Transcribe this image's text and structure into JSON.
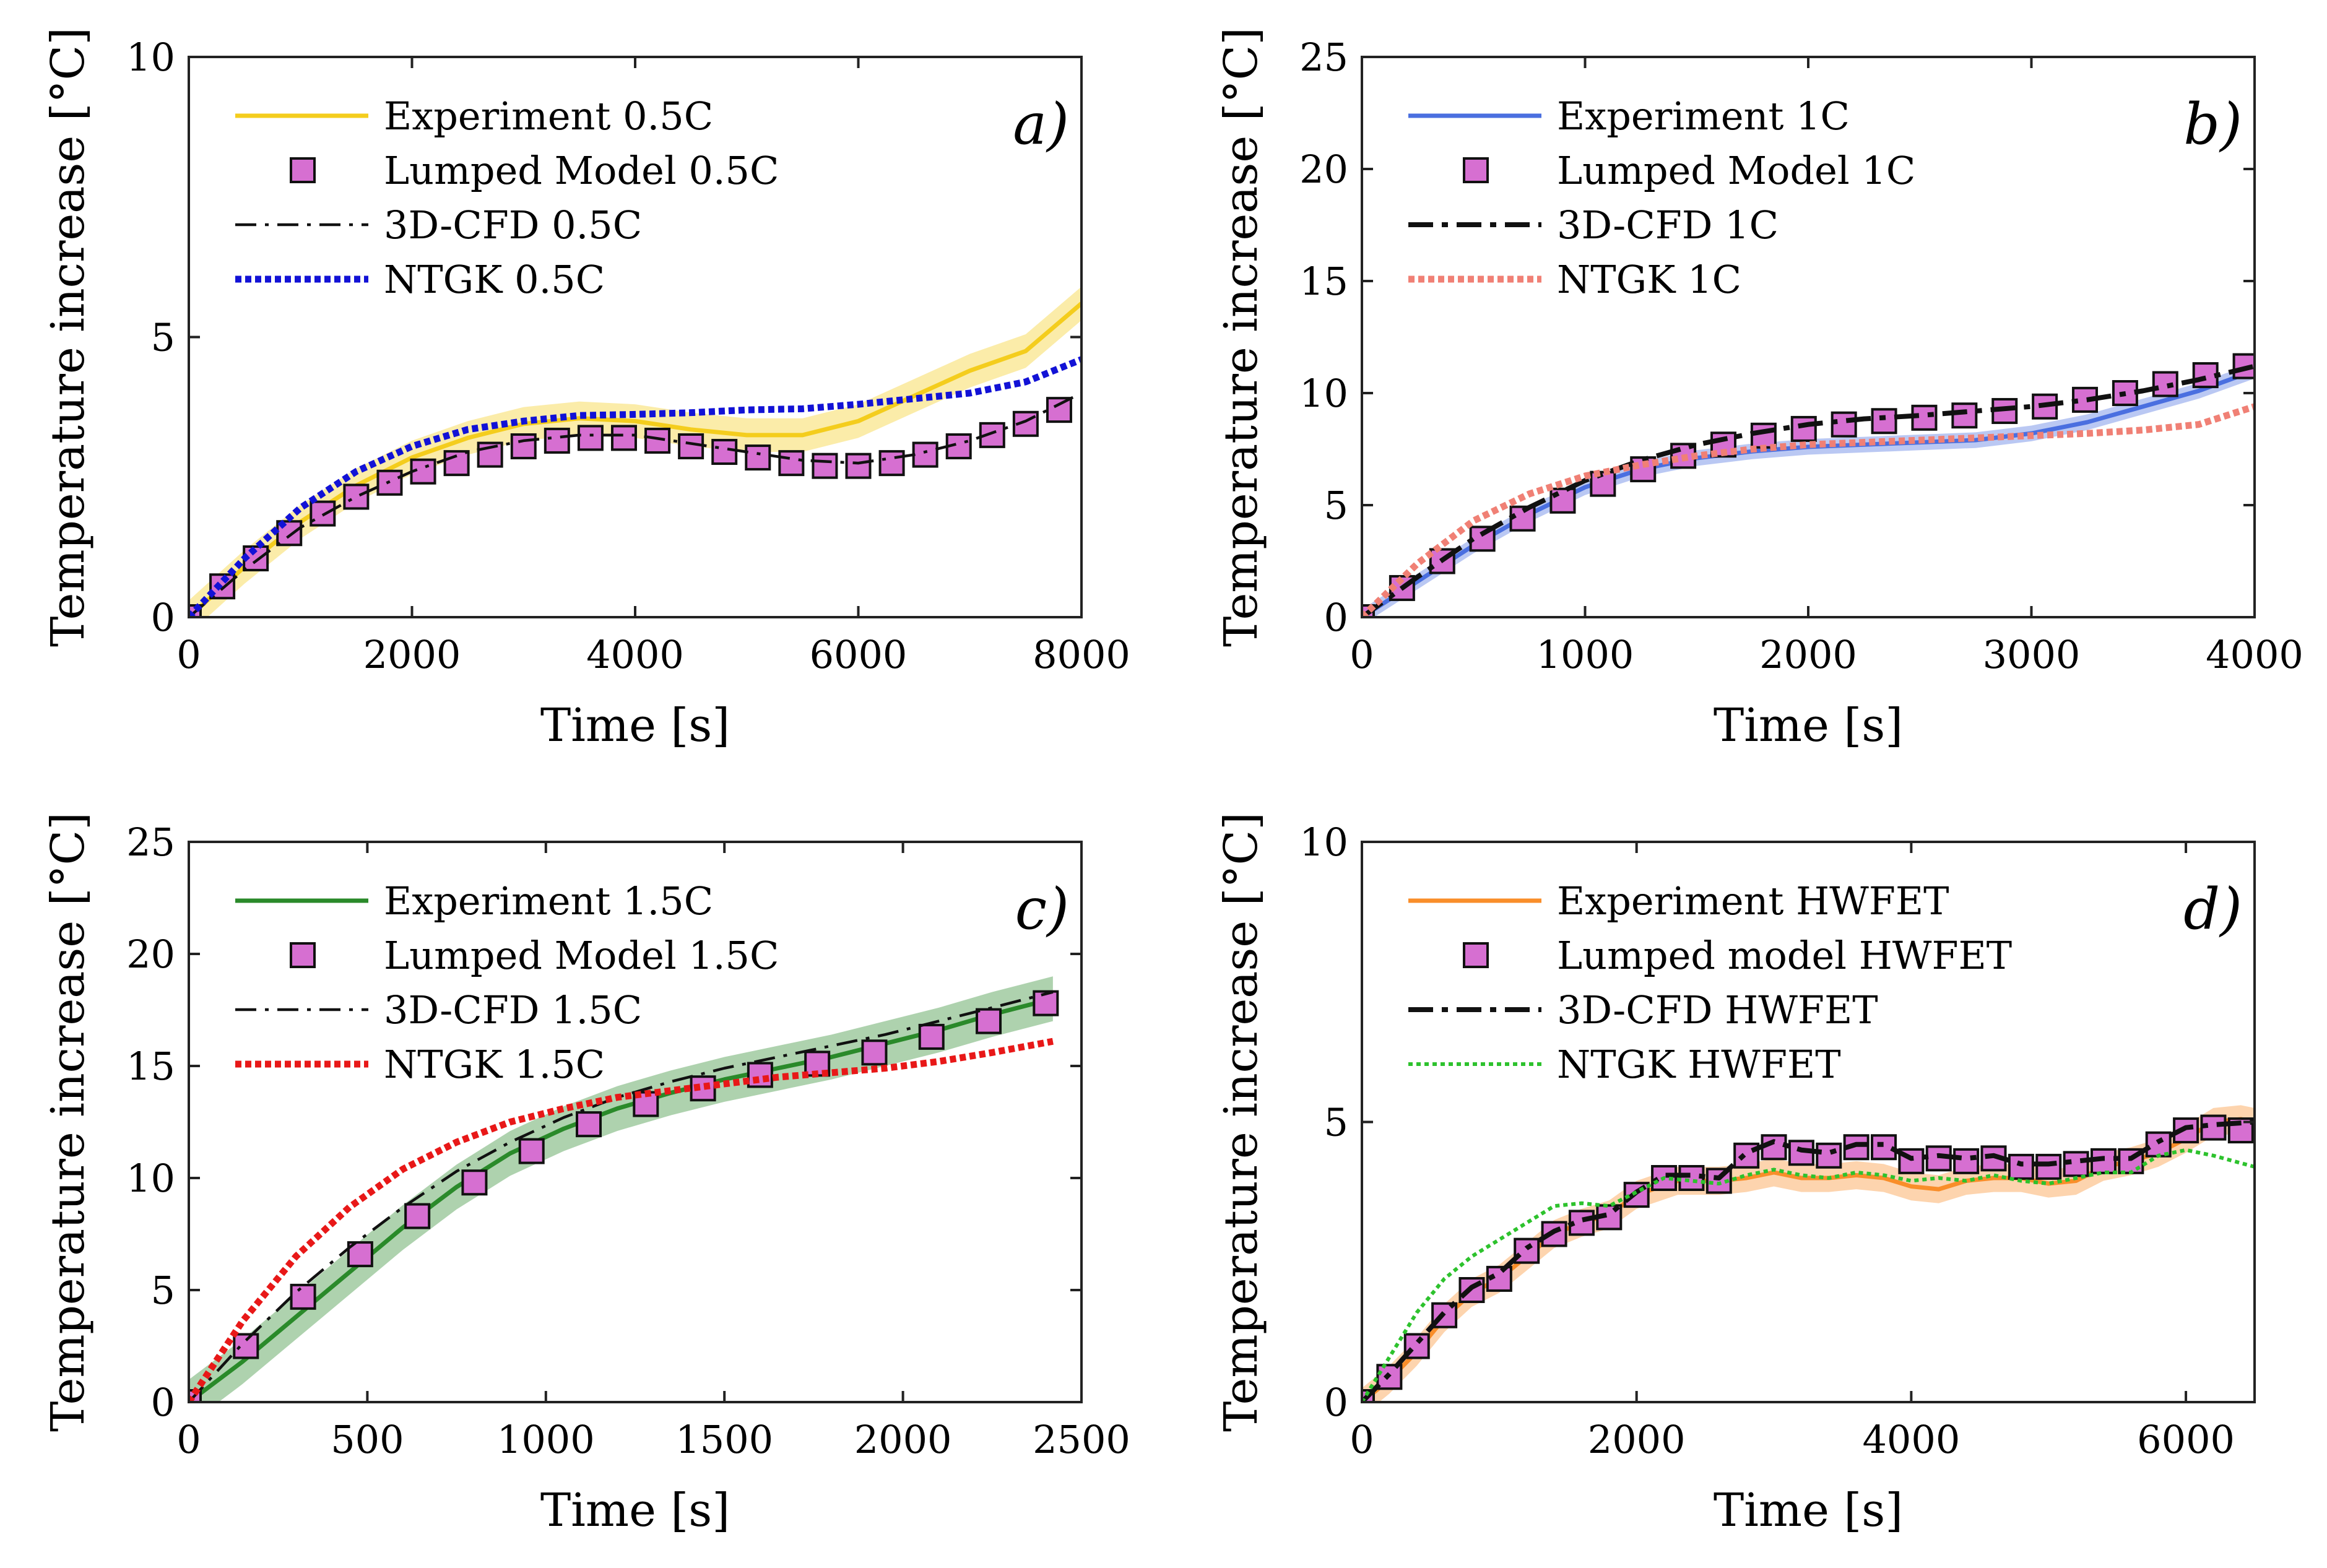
{
  "charts": [
    {
      "tag": "a)",
      "type": "line",
      "xlabel": "Time [s]",
      "ylabel": "Temperature increase [°C]",
      "xlim": [
        0,
        8000
      ],
      "ylim": [
        0,
        10
      ],
      "xticks": [
        0,
        2000,
        4000,
        6000,
        8000
      ],
      "yticks": [
        0,
        5,
        10
      ],
      "legend_position": "top-left",
      "series": [
        {
          "name": "Experiment 0.5C",
          "kind": "experiment",
          "color": "#f4cd1d",
          "band": 0.3,
          "x": [
            0,
            500,
            1000,
            1500,
            2000,
            2500,
            3000,
            3500,
            4000,
            4500,
            5000,
            5500,
            6000,
            6500,
            7000,
            7500,
            8000
          ],
          "y": [
            0,
            0.9,
            1.7,
            2.35,
            2.85,
            3.2,
            3.45,
            3.55,
            3.5,
            3.35,
            3.25,
            3.25,
            3.5,
            3.95,
            4.4,
            4.75,
            5.6
          ]
        },
        {
          "name": "Lumped Model 0.5C",
          "kind": "markers",
          "color": "#d66fd1",
          "x": [
            0,
            300,
            600,
            900,
            1200,
            1500,
            1800,
            2100,
            2400,
            2700,
            3000,
            3300,
            3600,
            3900,
            4200,
            4500,
            4800,
            5100,
            5400,
            5700,
            6000,
            6300,
            6600,
            6900,
            7200,
            7500,
            7800
          ],
          "y": [
            0,
            0.55,
            1.05,
            1.5,
            1.85,
            2.15,
            2.4,
            2.6,
            2.75,
            2.9,
            3.05,
            3.15,
            3.2,
            3.2,
            3.15,
            3.05,
            2.95,
            2.85,
            2.75,
            2.7,
            2.7,
            2.75,
            2.9,
            3.05,
            3.25,
            3.45,
            3.7
          ]
        },
        {
          "name": "3D-CFD 0.5C",
          "kind": "dashdot-thin",
          "color": "#111111",
          "x": [
            0,
            500,
            1000,
            1500,
            2000,
            2500,
            3000,
            3500,
            4000,
            4500,
            5000,
            5500,
            6000,
            6500,
            7000,
            7500,
            8000
          ],
          "y": [
            0,
            0.85,
            1.6,
            2.15,
            2.6,
            2.95,
            3.15,
            3.25,
            3.25,
            3.1,
            2.95,
            2.8,
            2.75,
            2.9,
            3.15,
            3.5,
            4.0
          ]
        },
        {
          "name": "NTGK 0.5C",
          "kind": "dotted",
          "color": "#1212d6",
          "x": [
            0,
            500,
            1000,
            1500,
            2000,
            2500,
            3000,
            3500,
            4000,
            4500,
            5000,
            5500,
            6000,
            6500,
            7000,
            7500,
            8000
          ],
          "y": [
            0,
            1.05,
            1.95,
            2.6,
            3.05,
            3.35,
            3.5,
            3.6,
            3.62,
            3.65,
            3.7,
            3.72,
            3.8,
            3.9,
            4.0,
            4.2,
            4.6
          ]
        }
      ]
    },
    {
      "tag": "b)",
      "type": "line",
      "xlabel": "Time [s]",
      "ylabel": "Temperature increase [°C]",
      "xlim": [
        0,
        4000
      ],
      "ylim": [
        0,
        25
      ],
      "xticks": [
        0,
        1000,
        2000,
        3000,
        4000
      ],
      "yticks": [
        0,
        5,
        10,
        15,
        20,
        25
      ],
      "legend_position": "top-left",
      "series": [
        {
          "name": "Experiment 1C",
          "kind": "experiment",
          "color": "#4a6fe0",
          "band": 0.35,
          "x": [
            0,
            250,
            500,
            750,
            1000,
            1250,
            1500,
            1750,
            2000,
            2250,
            2500,
            2750,
            3000,
            3250,
            3500,
            3750,
            4000
          ],
          "y": [
            0,
            1.6,
            3.2,
            4.6,
            5.8,
            6.6,
            7.1,
            7.4,
            7.6,
            7.7,
            7.8,
            7.9,
            8.2,
            8.7,
            9.4,
            10.1,
            11.0
          ]
        },
        {
          "name": "Lumped Model 1C",
          "kind": "markers",
          "color": "#d66fd1",
          "x": [
            0,
            180,
            360,
            540,
            720,
            900,
            1080,
            1260,
            1440,
            1620,
            1800,
            1980,
            2160,
            2340,
            2520,
            2700,
            2880,
            3060,
            3240,
            3420,
            3600,
            3780,
            3960
          ],
          "y": [
            0,
            1.3,
            2.5,
            3.5,
            4.4,
            5.2,
            5.95,
            6.6,
            7.2,
            7.7,
            8.1,
            8.4,
            8.6,
            8.75,
            8.9,
            9.0,
            9.2,
            9.4,
            9.7,
            10.0,
            10.4,
            10.8,
            11.2
          ]
        },
        {
          "name": "3D-CFD 1C",
          "kind": "dashdot-thick",
          "color": "#111111",
          "x": [
            0,
            250,
            500,
            750,
            1000,
            1250,
            1500,
            1750,
            2000,
            2250,
            2500,
            2750,
            3000,
            3250,
            3500,
            3750,
            4000
          ],
          "y": [
            0,
            1.8,
            3.5,
            4.9,
            6.1,
            7.0,
            7.7,
            8.2,
            8.6,
            8.85,
            9.0,
            9.2,
            9.4,
            9.7,
            10.1,
            10.6,
            11.2
          ]
        },
        {
          "name": "NTGK 1C",
          "kind": "dotted",
          "color": "#f08075",
          "x": [
            0,
            250,
            500,
            750,
            1000,
            1250,
            1500,
            1750,
            2000,
            2250,
            2500,
            2750,
            3000,
            3250,
            3500,
            3750,
            4000
          ],
          "y": [
            0,
            2.4,
            4.3,
            5.5,
            6.3,
            6.8,
            7.2,
            7.5,
            7.7,
            7.8,
            7.9,
            8.0,
            8.1,
            8.2,
            8.35,
            8.6,
            9.4
          ]
        }
      ]
    },
    {
      "tag": "c)",
      "type": "line",
      "xlabel": "Time [s]",
      "ylabel": "Temperature increase [°C]",
      "xlim": [
        0,
        2500
      ],
      "ylim": [
        0,
        25
      ],
      "xticks": [
        0,
        500,
        1000,
        1500,
        2000,
        2500
      ],
      "yticks": [
        0,
        5,
        10,
        15,
        20,
        25
      ],
      "legend_position": "top-left",
      "series": [
        {
          "name": "Experiment 1.5C",
          "kind": "experiment",
          "color": "#2a8a2a",
          "band": 1.0,
          "x": [
            0,
            150,
            300,
            450,
            600,
            750,
            900,
            1050,
            1200,
            1350,
            1500,
            1650,
            1800,
            1950,
            2100,
            2250,
            2420
          ],
          "y": [
            0,
            1.8,
            3.8,
            5.8,
            7.8,
            9.6,
            11.1,
            12.2,
            13.1,
            13.8,
            14.4,
            14.9,
            15.4,
            16.0,
            16.6,
            17.3,
            18.0
          ]
        },
        {
          "name": "Lumped Model 1.5C",
          "kind": "markers",
          "color": "#d66fd1",
          "x": [
            0,
            160,
            320,
            480,
            640,
            800,
            960,
            1120,
            1280,
            1440,
            1600,
            1760,
            1920,
            2080,
            2240,
            2400
          ],
          "y": [
            0,
            2.5,
            4.7,
            6.6,
            8.3,
            9.8,
            11.2,
            12.4,
            13.3,
            14.0,
            14.6,
            15.1,
            15.6,
            16.3,
            17.0,
            17.8
          ]
        },
        {
          "name": "3D-CFD 1.5C",
          "kind": "dashdot-thin",
          "color": "#111111",
          "x": [
            0,
            150,
            300,
            450,
            600,
            750,
            900,
            1050,
            1200,
            1350,
            1500,
            1650,
            1800,
            1950,
            2100,
            2250,
            2420
          ],
          "y": [
            0,
            2.6,
            4.9,
            6.9,
            8.7,
            10.3,
            11.6,
            12.7,
            13.6,
            14.3,
            14.9,
            15.4,
            15.9,
            16.4,
            17.0,
            17.6,
            18.3
          ]
        },
        {
          "name": "NTGK 1.5C",
          "kind": "dotted",
          "color": "#e81818",
          "x": [
            0,
            150,
            300,
            450,
            600,
            750,
            900,
            1050,
            1200,
            1350,
            1500,
            1650,
            1800,
            1950,
            2100,
            2250,
            2420
          ],
          "y": [
            0,
            3.6,
            6.5,
            8.7,
            10.4,
            11.6,
            12.5,
            13.1,
            13.6,
            13.9,
            14.2,
            14.5,
            14.7,
            14.9,
            15.2,
            15.6,
            16.1
          ]
        }
      ]
    },
    {
      "tag": "d)",
      "type": "line",
      "xlabel": "Time [s]",
      "ylabel": "Temperature increase [°C]",
      "xlim": [
        0,
        6500
      ],
      "ylim": [
        0,
        10
      ],
      "xticks": [
        0,
        2000,
        4000,
        6000
      ],
      "yticks": [
        0,
        5,
        10
      ],
      "legend_position": "top-left",
      "series": [
        {
          "name": "Experiment HWFET",
          "kind": "experiment",
          "color": "#f98e2a",
          "band": 0.25,
          "x": [
            0,
            200,
            400,
            600,
            800,
            1000,
            1200,
            1400,
            1600,
            1800,
            2000,
            2300,
            2600,
            2800,
            3000,
            3200,
            3400,
            3600,
            3800,
            4000,
            4200,
            4400,
            4600,
            4800,
            5000,
            5200,
            5400,
            5600,
            5800,
            6000,
            6200,
            6400,
            6500
          ],
          "y": [
            0,
            0.4,
            0.9,
            1.5,
            1.95,
            2.2,
            2.6,
            3.0,
            3.2,
            3.35,
            3.7,
            3.95,
            3.95,
            4.0,
            4.1,
            4.0,
            4.0,
            4.05,
            4.0,
            3.85,
            3.8,
            3.95,
            4.0,
            4.0,
            3.9,
            3.95,
            4.2,
            4.3,
            4.45,
            4.7,
            5.0,
            5.05,
            5.0
          ]
        },
        {
          "name": "Lumped model HWFET",
          "kind": "markers",
          "color": "#d66fd1",
          "x": [
            0,
            200,
            400,
            600,
            800,
            1000,
            1200,
            1400,
            1600,
            1800,
            2000,
            2200,
            2400,
            2600,
            2800,
            3000,
            3200,
            3400,
            3600,
            3800,
            4000,
            4200,
            4400,
            4600,
            4800,
            5000,
            5200,
            5400,
            5600,
            5800,
            6000,
            6200,
            6400
          ],
          "y": [
            0,
            0.45,
            1.0,
            1.55,
            2.0,
            2.2,
            2.7,
            3.0,
            3.2,
            3.3,
            3.7,
            4.0,
            4.0,
            3.95,
            4.4,
            4.55,
            4.45,
            4.4,
            4.55,
            4.55,
            4.3,
            4.35,
            4.3,
            4.35,
            4.2,
            4.2,
            4.25,
            4.3,
            4.3,
            4.6,
            4.85,
            4.9,
            4.85
          ]
        },
        {
          "name": "3D-CFD HWFET",
          "kind": "dashdot-thick",
          "color": "#111111",
          "x": [
            0,
            200,
            400,
            600,
            800,
            1000,
            1200,
            1400,
            1600,
            1800,
            2000,
            2200,
            2400,
            2600,
            2800,
            3000,
            3200,
            3400,
            3600,
            3800,
            4000,
            4200,
            4400,
            4600,
            4800,
            5000,
            5200,
            5400,
            5600,
            5800,
            6000,
            6200,
            6500
          ],
          "y": [
            0,
            0.5,
            1.05,
            1.6,
            2.05,
            2.3,
            2.75,
            3.05,
            3.25,
            3.35,
            3.75,
            4.05,
            4.05,
            4.0,
            4.45,
            4.65,
            4.5,
            4.45,
            4.6,
            4.6,
            4.35,
            4.4,
            4.35,
            4.4,
            4.25,
            4.25,
            4.3,
            4.35,
            4.35,
            4.65,
            4.9,
            4.95,
            5.0
          ]
        },
        {
          "name": "NTGK HWFET",
          "kind": "dotted-fine",
          "color": "#2dc22d",
          "x": [
            0,
            200,
            400,
            600,
            800,
            1000,
            1200,
            1400,
            1600,
            1800,
            2000,
            2200,
            2400,
            2600,
            2800,
            3000,
            3200,
            3400,
            3600,
            3800,
            4000,
            4200,
            4400,
            4600,
            4800,
            5000,
            5200,
            5400,
            5600,
            5800,
            6000,
            6200,
            6500
          ],
          "y": [
            0,
            0.8,
            1.6,
            2.2,
            2.6,
            2.9,
            3.2,
            3.5,
            3.55,
            3.5,
            3.75,
            4.0,
            3.95,
            3.9,
            4.05,
            4.15,
            4.05,
            4.0,
            4.1,
            4.05,
            3.95,
            4.0,
            3.95,
            4.05,
            3.95,
            3.9,
            4.0,
            4.1,
            4.1,
            4.4,
            4.5,
            4.4,
            4.2
          ]
        }
      ]
    }
  ]
}
